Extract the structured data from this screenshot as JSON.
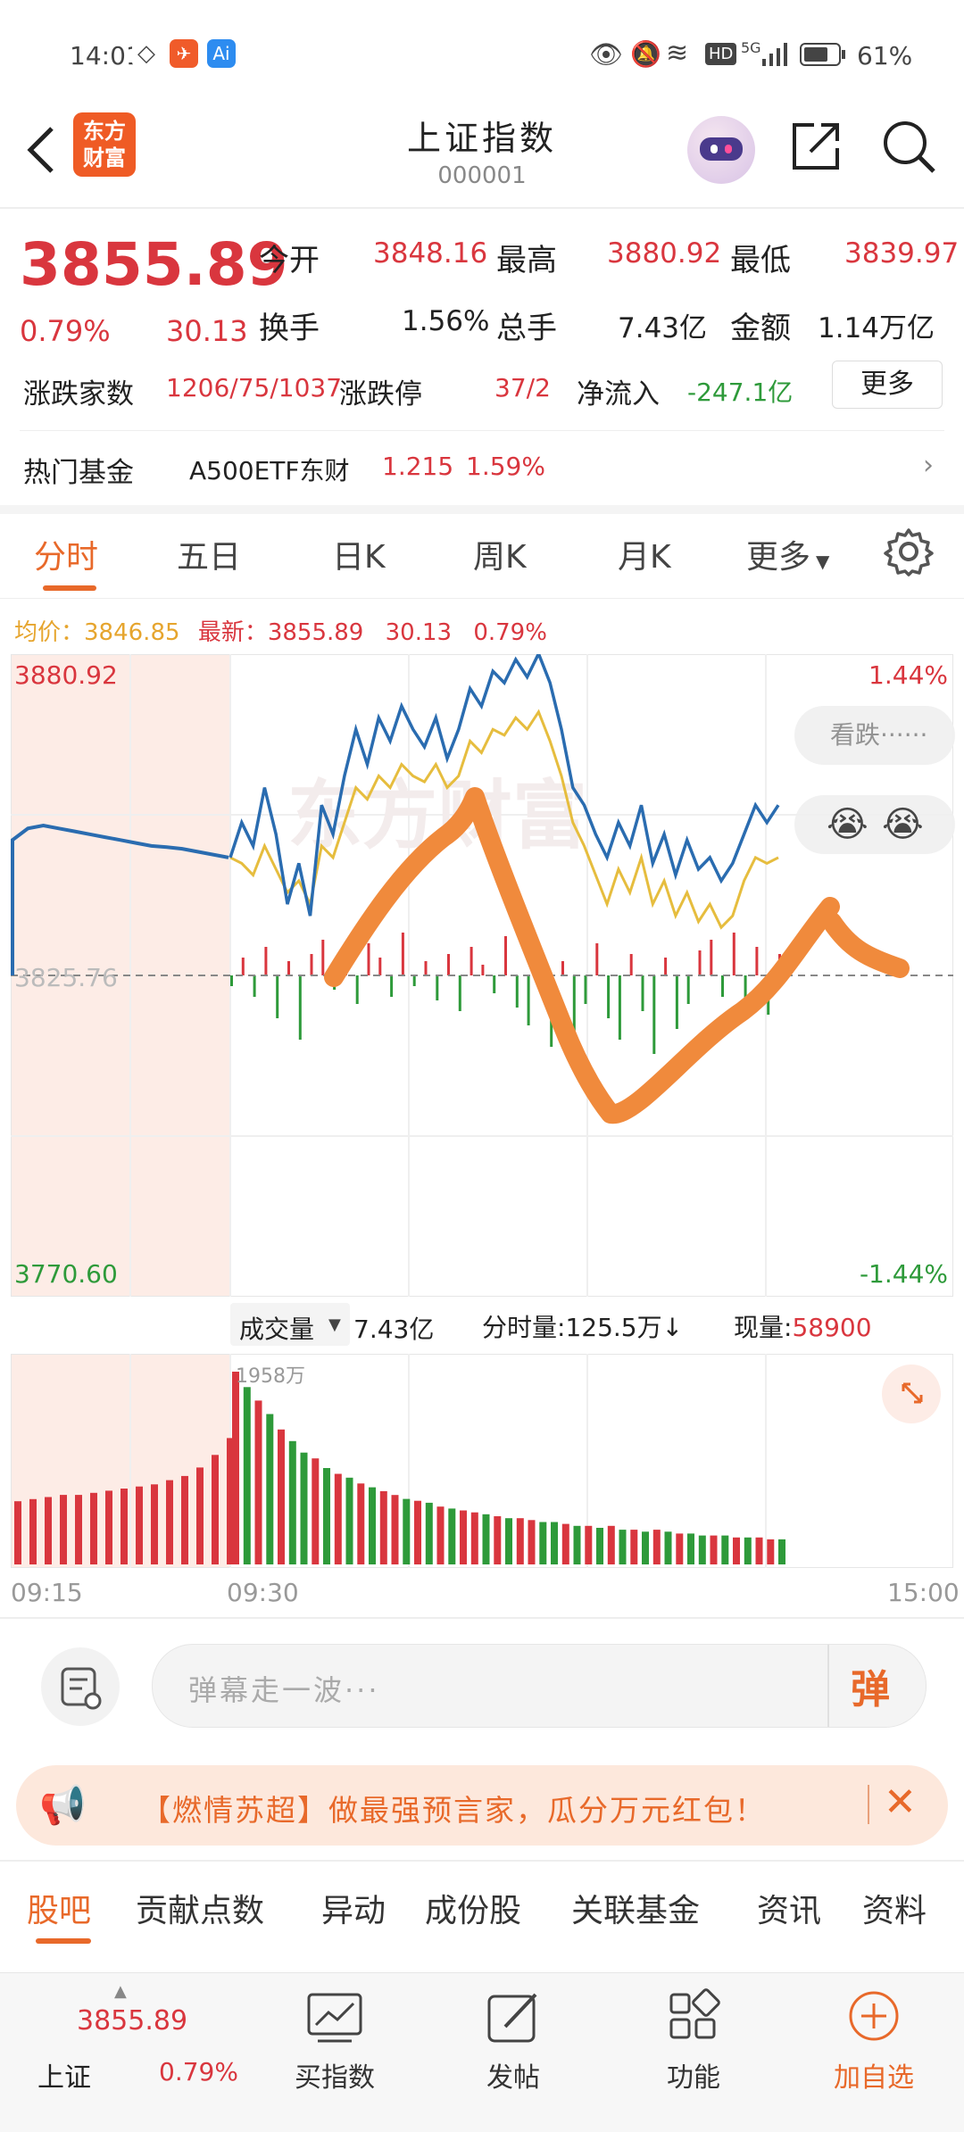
{
  "status_bar": {
    "time": "14:01",
    "app_icon_ai": "Ai",
    "network": "5G",
    "battery_percent": "61%",
    "hd": "HD"
  },
  "header": {
    "back_icon": "chevron-left-icon",
    "logo_line1": "东方",
    "logo_line2": "财富",
    "title": "上证指数",
    "code": "000001"
  },
  "quote": {
    "price": "3855.89",
    "change_pct": "0.79%",
    "change": "30.13",
    "open_label": "今开",
    "open": "3848.16",
    "high_label": "最高",
    "high": "3880.92",
    "low_label": "最低",
    "low": "3839.97",
    "turnover_label": "换手",
    "turnover": "1.56%",
    "volume_label": "总手",
    "volume": "7.43亿",
    "amount_label": "金额",
    "amount": "1.14万亿",
    "breadth_label": "涨跌家数",
    "breadth": "1206/75/1037",
    "limit_label": "涨跌停",
    "limit": "37/2",
    "netflow_label": "净流入",
    "netflow": "-247.1亿",
    "more_button": "更多"
  },
  "hot_fund": {
    "label": "热门基金",
    "name": "A500ETF东财",
    "price": "1.215",
    "pct": "1.59%"
  },
  "tabs": [
    "分时",
    "五日",
    "日K",
    "周K",
    "月K",
    "更多"
  ],
  "active_tab": 0,
  "info_line": {
    "avg_label": "均价：",
    "avg": "3846.85",
    "latest_label": "最新：",
    "latest": "3855.89",
    "change": "30.13",
    "pct": "0.79%"
  },
  "chart": {
    "y_top": "3880.92",
    "y_mid": "3825.76",
    "y_bottom": "3770.60",
    "pct_top": "1.44%",
    "pct_bottom": "-1.44%",
    "watermark": "东方财富",
    "bearish_button": "看跌······"
  },
  "volume_bar": {
    "label": "成交量",
    "total": "7.43亿",
    "minute_label": "分时量:",
    "minute": "125.5万↓",
    "current_label": "现量:",
    "current": "58900",
    "peak": "1958万",
    "x_start": "09:15",
    "x_open": "09:30",
    "x_end": "15:00"
  },
  "danmaku": {
    "placeholder": "弹幕走一波···",
    "send_icon_text": "弹"
  },
  "banner": {
    "text": "【燃情苏超】做最强预言家，瓜分万元红包！"
  },
  "sub_tabs": [
    "股吧",
    "贡献点数",
    "异动",
    "成份股",
    "关联基金",
    "资讯",
    "资料"
  ],
  "bottom_bar": {
    "index_price": "3855.89",
    "index_name": "上证",
    "index_pct": "0.79%",
    "buy_index": "买指数",
    "post": "发帖",
    "functions": "功能",
    "add_watch": "加自选"
  },
  "colors": {
    "up": "#d9363e",
    "down": "#2e9a3a",
    "accent": "#e8692a",
    "price_line": "#2a6cb0",
    "avg_line": "#e6bd3e",
    "draw_stroke": "#f08a3c"
  },
  "chart_data": {
    "type": "line",
    "price_range": [
      3770.6,
      3880.92
    ],
    "reference_close": 3825.76,
    "pre_open_price": [
      3849,
      3851,
      3851.5,
      3851,
      3850.5,
      3850,
      3849.5,
      3849,
      3848.5,
      3848,
      3847.8,
      3847.5,
      3847,
      3846.5,
      3846
    ],
    "price": [
      3846,
      3852,
      3848,
      3858,
      3850,
      3838,
      3845,
      3836,
      3855,
      3850,
      3860,
      3868,
      3862,
      3870,
      3866,
      3872,
      3868,
      3865,
      3870,
      3863,
      3868,
      3875,
      3872,
      3878,
      3876,
      3880,
      3877,
      3881,
      3876,
      3868,
      3858,
      3855,
      3850,
      3846,
      3852,
      3848,
      3855,
      3845,
      3850,
      3843,
      3849,
      3844,
      3846,
      3842,
      3845,
      3850,
      3855,
      3852,
      3855
    ],
    "avg": [
      3846,
      3845,
      3843,
      3848,
      3844,
      3840,
      3842,
      3838,
      3848,
      3846,
      3852,
      3858,
      3856,
      3860,
      3858,
      3862,
      3860,
      3859,
      3862,
      3858,
      3860,
      3866,
      3864,
      3868,
      3867,
      3870,
      3868,
      3871,
      3866,
      3860,
      3852,
      3848,
      3843,
      3838,
      3844,
      3840,
      3846,
      3838,
      3842,
      3836,
      3840,
      3835,
      3838,
      3834,
      3836,
      3842,
      3846,
      3845,
      3846
    ],
    "net_bars": [
      -3,
      5,
      -6,
      8,
      -12,
      4,
      -18,
      6,
      10,
      -4,
      7,
      -8,
      9,
      5,
      -6,
      12,
      -3,
      4,
      -7,
      6,
      -10,
      8,
      3,
      -5,
      11,
      -9,
      -14,
      5,
      -20,
      4,
      -16,
      -8,
      9,
      -12,
      -18,
      6,
      -10,
      -22,
      5,
      -15,
      -8,
      7,
      10,
      -6,
      12,
      -9,
      8,
      -11,
      6
    ],
    "pre_volume": [
      30,
      31,
      32,
      33,
      33,
      34,
      35,
      36,
      37,
      38,
      40,
      42,
      46,
      52,
      60
    ],
    "volume": [
      100,
      92,
      85,
      78,
      70,
      64,
      58,
      55,
      50,
      47,
      45,
      42,
      40,
      38,
      36,
      34,
      33,
      32,
      30,
      29,
      28,
      27,
      26,
      25,
      24,
      24,
      23,
      22,
      22,
      21,
      20,
      20,
      19,
      20,
      18,
      18,
      17,
      18,
      17,
      16,
      16,
      15,
      15,
      15,
      14,
      14,
      14,
      13,
      13
    ],
    "volume_up": [
      true,
      false,
      true,
      false,
      true,
      false,
      false,
      true,
      false,
      true,
      false,
      true,
      false,
      true,
      true,
      false,
      true,
      false,
      true,
      false,
      true,
      true,
      false,
      true,
      false,
      true,
      true,
      false,
      false,
      true,
      false,
      true,
      false,
      true,
      false,
      true,
      false,
      true,
      false,
      true,
      false,
      false,
      true,
      false,
      true,
      false,
      true,
      true,
      false
    ]
  }
}
